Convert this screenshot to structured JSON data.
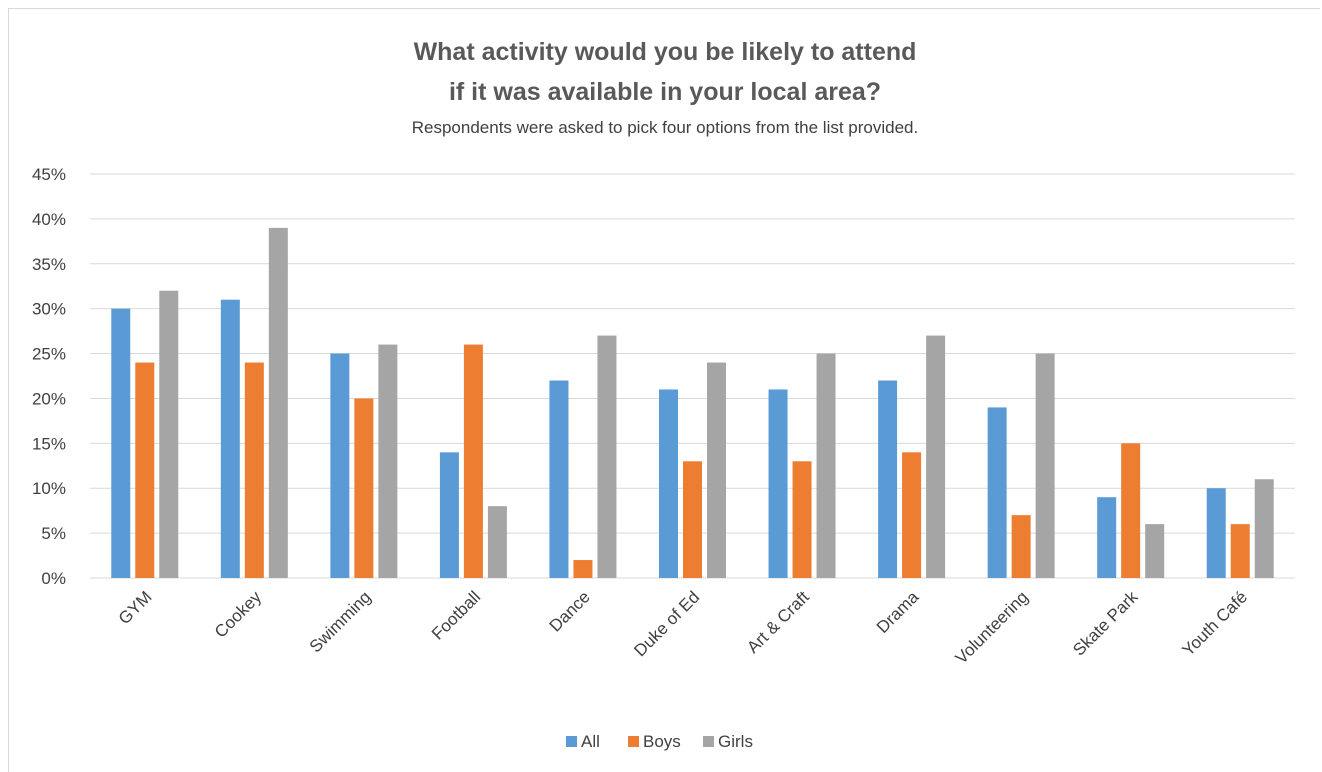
{
  "chart_data": {
    "type": "bar",
    "title_line1": "What activity would you be likely to attend",
    "title_line2": "if it was available in your local area?",
    "subtitle": "Respondents were asked to pick four options from the list provided.",
    "categories": [
      "GYM",
      "Cookey",
      "Swimming",
      "Football",
      "Dance",
      "Duke of Ed",
      "Art & Craft",
      "Drama",
      "Volunteering",
      "Skate Park",
      "Youth Café"
    ],
    "series": [
      {
        "name": "All",
        "color": "#5b9bd5",
        "values": [
          30,
          31,
          25,
          14,
          22,
          21,
          21,
          22,
          19,
          9,
          10
        ]
      },
      {
        "name": "Boys",
        "color": "#ed7d31",
        "values": [
          24,
          24,
          20,
          26,
          2,
          13,
          13,
          14,
          7,
          15,
          6
        ]
      },
      {
        "name": "Girls",
        "color": "#a5a5a5",
        "values": [
          32,
          39,
          26,
          8,
          27,
          24,
          25,
          27,
          25,
          6,
          11
        ]
      }
    ],
    "y_ticks": [
      "0%",
      "5%",
      "10%",
      "15%",
      "20%",
      "25%",
      "30%",
      "35%",
      "40%",
      "45%"
    ],
    "ylim": [
      0,
      45
    ],
    "grid": true,
    "legend_position": "bottom"
  }
}
